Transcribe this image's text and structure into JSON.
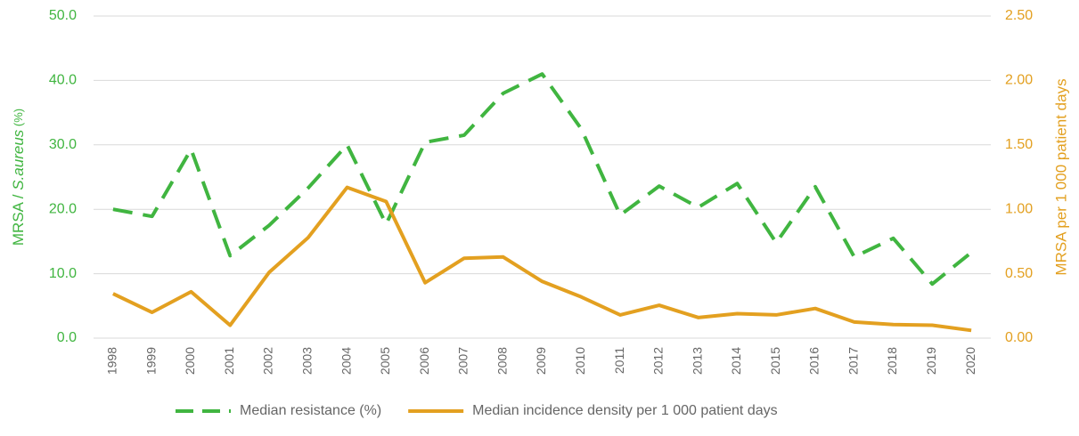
{
  "chart_data": {
    "type": "line",
    "categories": [
      "1998",
      "1999",
      "2000",
      "2001",
      "2002",
      "2003",
      "2004",
      "2005",
      "2006",
      "2007",
      "2008",
      "2009",
      "2010",
      "2011",
      "2012",
      "2013",
      "2014",
      "2015",
      "2016",
      "2017",
      "2018",
      "2019",
      "2020"
    ],
    "series": [
      {
        "name": "Median resistance (%)",
        "color": "#40b540",
        "dashed": true,
        "values": [
          20.0,
          18.9,
          29.3,
          12.8,
          17.5,
          23.3,
          30.0,
          17.7,
          30.4,
          31.5,
          38.0,
          41.0,
          32.5,
          19.1,
          23.6,
          20.3,
          24.0,
          14.8,
          23.5,
          12.6,
          15.5,
          8.4,
          13.3
        ]
      },
      {
        "name": "Median incidence density per 1 000 patient days",
        "color": "#e3a020",
        "axis": "y2",
        "values": [
          0.345,
          0.2,
          0.36,
          0.1,
          0.51,
          0.78,
          1.17,
          1.06,
          0.43,
          0.62,
          0.63,
          0.44,
          0.32,
          0.18,
          0.255,
          0.16,
          0.19,
          0.18,
          0.23,
          0.125,
          0.105,
          0.1,
          0.06
        ]
      }
    ],
    "ylabel": [
      "MRSA / ",
      "S.aureus",
      " (%)"
    ],
    "y2label": "MRSA per 1 000 patient days",
    "ylim": [
      0,
      50
    ],
    "yticks": [
      {
        "value": 0,
        "label": "0.0"
      },
      {
        "value": 10,
        "label": "10.0"
      },
      {
        "value": 20,
        "label": "20.0"
      },
      {
        "value": 30,
        "label": "30.0"
      },
      {
        "value": 40,
        "label": "40.0"
      },
      {
        "value": 50,
        "label": "50.0"
      }
    ],
    "y2lim": [
      0,
      2.5
    ],
    "y2ticks": [
      {
        "value": 0,
        "label": "0.00"
      },
      {
        "value": 0.5,
        "label": "0.50"
      },
      {
        "value": 1,
        "label": "1.00"
      },
      {
        "value": 1.5,
        "label": "1.50"
      },
      {
        "value": 2,
        "label": "2.00"
      },
      {
        "value": 2.5,
        "label": "2.50"
      }
    ],
    "grid": true,
    "legend": "bottom"
  }
}
